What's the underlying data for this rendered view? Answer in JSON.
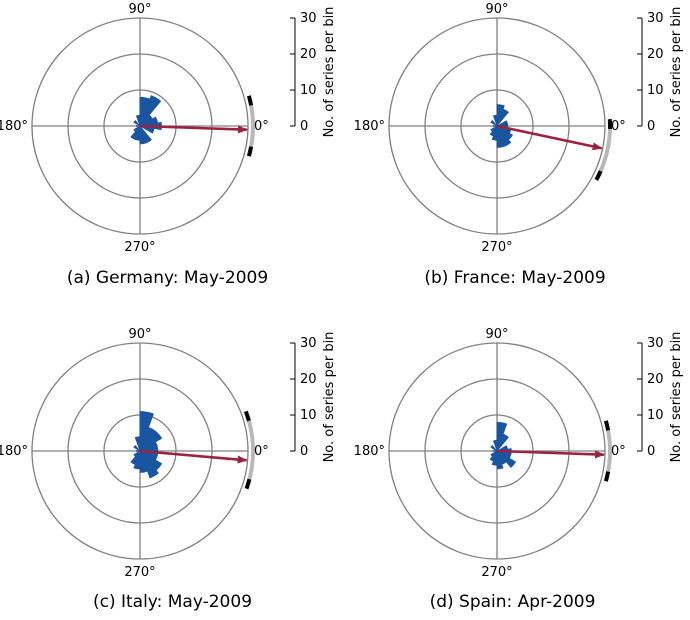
{
  "chart_data": [
    {
      "type": "polar-histogram",
      "caption": "(a) Germany: May-2009",
      "angle_labels": [
        "90°",
        "180°",
        "270°",
        "0°"
      ],
      "radial_axis": {
        "label": "No. of series per bin",
        "ticks": [
          "0",
          "10",
          "20",
          "30"
        ],
        "range": [
          0,
          30
        ]
      },
      "bin_width_deg": 20,
      "bins": [
        {
          "angle": 0,
          "count": 6
        },
        {
          "angle": 20,
          "count": 5
        },
        {
          "angle": 40,
          "count": 4
        },
        {
          "angle": 60,
          "count": 9
        },
        {
          "angle": 80,
          "count": 8
        },
        {
          "angle": 100,
          "count": 3
        },
        {
          "angle": 140,
          "count": 2
        },
        {
          "angle": 180,
          "count": 1
        },
        {
          "angle": 220,
          "count": 2
        },
        {
          "angle": 240,
          "count": 4
        },
        {
          "angle": 260,
          "count": 4
        },
        {
          "angle": 280,
          "count": 5
        },
        {
          "angle": 300,
          "count": 5
        },
        {
          "angle": 340,
          "count": 4
        }
      ],
      "mean_direction_deg": -2,
      "mean_length": 30,
      "confidence_arc_deg": [
        -14,
        12
      ],
      "arrow_color": "#9b2242",
      "bar_color": "#1a55a0"
    },
    {
      "type": "polar-histogram",
      "caption": "(b) France: May-2009",
      "angle_labels": [
        "90°",
        "180°",
        "270°",
        "0°"
      ],
      "radial_axis": {
        "label": "No. of series per bin",
        "ticks": [
          "0",
          "10",
          "20",
          "30"
        ],
        "range": [
          0,
          30
        ]
      },
      "bin_width_deg": 20,
      "bins": [
        {
          "angle": 0,
          "count": 3
        },
        {
          "angle": 20,
          "count": 3
        },
        {
          "angle": 60,
          "count": 5
        },
        {
          "angle": 80,
          "count": 6
        },
        {
          "angle": 100,
          "count": 3
        },
        {
          "angle": 140,
          "count": 2
        },
        {
          "angle": 180,
          "count": 1
        },
        {
          "angle": 220,
          "count": 2
        },
        {
          "angle": 240,
          "count": 3
        },
        {
          "angle": 260,
          "count": 4
        },
        {
          "angle": 280,
          "count": 6
        },
        {
          "angle": 300,
          "count": 6
        },
        {
          "angle": 320,
          "count": 5
        },
        {
          "angle": 340,
          "count": 4
        }
      ],
      "mean_direction_deg": -12,
      "mean_length": 30,
      "confidence_arc_deg": [
        -27,
        0
      ],
      "arrow_color": "#9b2242",
      "bar_color": "#1a55a0"
    },
    {
      "type": "polar-histogram",
      "caption": "(c) Italy: May-2009",
      "angle_labels": [
        "90°",
        "180°",
        "270°",
        "0°"
      ],
      "radial_axis": {
        "label": "No. of series per bin",
        "ticks": [
          "0",
          "10",
          "20",
          "30"
        ],
        "range": [
          0,
          30
        ]
      },
      "bin_width_deg": 20,
      "bins": [
        {
          "angle": 0,
          "count": 5
        },
        {
          "angle": 20,
          "count": 5
        },
        {
          "angle": 40,
          "count": 7
        },
        {
          "angle": 60,
          "count": 7
        },
        {
          "angle": 80,
          "count": 11
        },
        {
          "angle": 100,
          "count": 4
        },
        {
          "angle": 140,
          "count": 2
        },
        {
          "angle": 180,
          "count": 1
        },
        {
          "angle": 220,
          "count": 2
        },
        {
          "angle": 240,
          "count": 4
        },
        {
          "angle": 260,
          "count": 5
        },
        {
          "angle": 280,
          "count": 6
        },
        {
          "angle": 300,
          "count": 8
        },
        {
          "angle": 320,
          "count": 7
        },
        {
          "angle": 340,
          "count": 5
        }
      ],
      "mean_direction_deg": -5,
      "mean_length": 30,
      "confidence_arc_deg": [
        -18,
        17
      ],
      "arrow_color": "#9b2242",
      "bar_color": "#1a55a0"
    },
    {
      "type": "polar-histogram",
      "caption": "(d) Spain: Apr-2009",
      "angle_labels": [
        "90°",
        "180°",
        "270°",
        "0°"
      ],
      "radial_axis": {
        "label": "No. of series per bin",
        "ticks": [
          "0",
          "10",
          "20",
          "30"
        ],
        "range": [
          0,
          30
        ]
      },
      "bin_width_deg": 20,
      "bins": [
        {
          "angle": 0,
          "count": 4
        },
        {
          "angle": 20,
          "count": 3
        },
        {
          "angle": 60,
          "count": 5
        },
        {
          "angle": 80,
          "count": 8
        },
        {
          "angle": 100,
          "count": 3
        },
        {
          "angle": 140,
          "count": 2
        },
        {
          "angle": 180,
          "count": 1
        },
        {
          "angle": 220,
          "count": 2
        },
        {
          "angle": 240,
          "count": 3
        },
        {
          "angle": 260,
          "count": 4
        },
        {
          "angle": 280,
          "count": 5
        },
        {
          "angle": 300,
          "count": 4
        },
        {
          "angle": 320,
          "count": 6
        },
        {
          "angle": 340,
          "count": 4
        }
      ],
      "mean_direction_deg": -2,
      "mean_length": 30,
      "confidence_arc_deg": [
        -14,
        12
      ],
      "arrow_color": "#9b2242",
      "bar_color": "#1a55a0"
    }
  ]
}
